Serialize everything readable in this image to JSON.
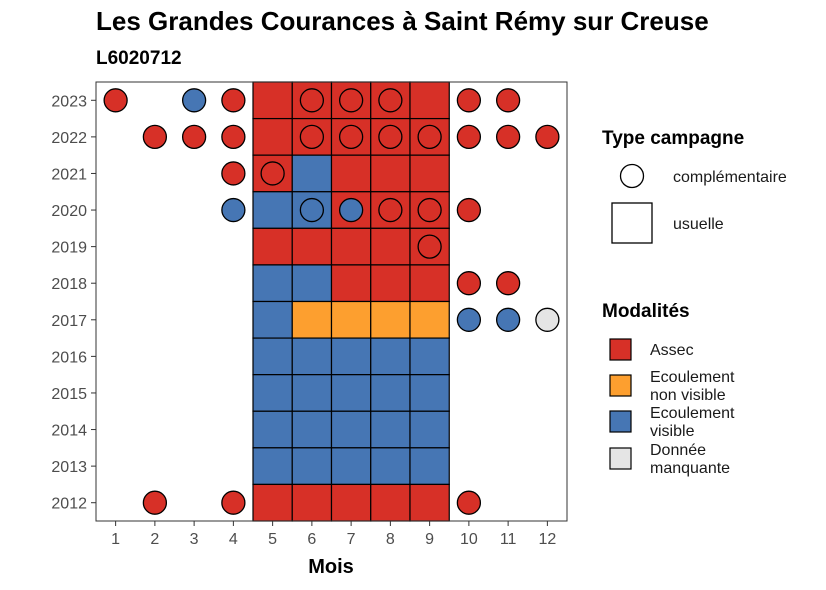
{
  "chart_data": {
    "type": "heatmap",
    "title": "Les Grandes Courances à Saint Rémy sur Creuse",
    "subtitle": "L6020712",
    "xlabel": "Mois",
    "ylabel": "",
    "x_ticks": [
      1,
      2,
      3,
      4,
      5,
      6,
      7,
      8,
      9,
      10,
      11,
      12
    ],
    "y_ticks": [
      2012,
      2013,
      2014,
      2015,
      2016,
      2017,
      2018,
      2019,
      2020,
      2021,
      2022,
      2023
    ],
    "xlim": [
      0.5,
      12.5
    ],
    "ylim": [
      2011.5,
      2023.5
    ],
    "grid": false,
    "legend_placement": "right",
    "modalites": [
      {
        "key": "assec",
        "label_lines": [
          "Assec"
        ],
        "color": "#d73027"
      },
      {
        "key": "ecoulement_non_visible",
        "label_lines": [
          "Ecoulement",
          "non visible"
        ],
        "color": "#fd9f2f"
      },
      {
        "key": "ecoulement_visible",
        "label_lines": [
          "Ecoulement",
          "visible"
        ],
        "color": "#4676b4"
      },
      {
        "key": "donnee_manquante",
        "label_lines": [
          "Donnée",
          "manquante"
        ],
        "color": "#e5e5e5"
      }
    ],
    "legend_type_title": "Type campagne",
    "legend_modalites_title": "Modalités",
    "types": [
      {
        "key": "complementaire",
        "label": "complémentaire",
        "shape": "circle"
      },
      {
        "key": "usuelle",
        "label": "usuelle",
        "shape": "square"
      }
    ],
    "observations": [
      {
        "year": 2023,
        "month": 1,
        "type": "complementaire",
        "modalite": "assec"
      },
      {
        "year": 2023,
        "month": 3,
        "type": "complementaire",
        "modalite": "ecoulement_visible"
      },
      {
        "year": 2023,
        "month": 4,
        "type": "complementaire",
        "modalite": "assec"
      },
      {
        "year": 2023,
        "month": 5,
        "type": "usuelle",
        "modalite": "assec"
      },
      {
        "year": 2023,
        "month": 6,
        "type": "usuelle",
        "modalite": "assec"
      },
      {
        "year": 2023,
        "month": 6,
        "type": "complementaire",
        "modalite": "assec"
      },
      {
        "year": 2023,
        "month": 7,
        "type": "usuelle",
        "modalite": "assec"
      },
      {
        "year": 2023,
        "month": 7,
        "type": "complementaire",
        "modalite": "assec"
      },
      {
        "year": 2023,
        "month": 8,
        "type": "usuelle",
        "modalite": "assec"
      },
      {
        "year": 2023,
        "month": 8,
        "type": "complementaire",
        "modalite": "assec"
      },
      {
        "year": 2023,
        "month": 9,
        "type": "usuelle",
        "modalite": "assec"
      },
      {
        "year": 2023,
        "month": 10,
        "type": "complementaire",
        "modalite": "assec"
      },
      {
        "year": 2023,
        "month": 11,
        "type": "complementaire",
        "modalite": "assec"
      },
      {
        "year": 2022,
        "month": 2,
        "type": "complementaire",
        "modalite": "assec"
      },
      {
        "year": 2022,
        "month": 3,
        "type": "complementaire",
        "modalite": "assec"
      },
      {
        "year": 2022,
        "month": 4,
        "type": "complementaire",
        "modalite": "assec"
      },
      {
        "year": 2022,
        "month": 5,
        "type": "usuelle",
        "modalite": "assec"
      },
      {
        "year": 2022,
        "month": 6,
        "type": "usuelle",
        "modalite": "assec"
      },
      {
        "year": 2022,
        "month": 6,
        "type": "complementaire",
        "modalite": "assec"
      },
      {
        "year": 2022,
        "month": 7,
        "type": "usuelle",
        "modalite": "assec"
      },
      {
        "year": 2022,
        "month": 7,
        "type": "complementaire",
        "modalite": "assec"
      },
      {
        "year": 2022,
        "month": 8,
        "type": "usuelle",
        "modalite": "assec"
      },
      {
        "year": 2022,
        "month": 8,
        "type": "complementaire",
        "modalite": "assec"
      },
      {
        "year": 2022,
        "month": 9,
        "type": "usuelle",
        "modalite": "assec"
      },
      {
        "year": 2022,
        "month": 9,
        "type": "complementaire",
        "modalite": "assec"
      },
      {
        "year": 2022,
        "month": 10,
        "type": "complementaire",
        "modalite": "assec"
      },
      {
        "year": 2022,
        "month": 11,
        "type": "complementaire",
        "modalite": "assec"
      },
      {
        "year": 2022,
        "month": 12,
        "type": "complementaire",
        "modalite": "assec"
      },
      {
        "year": 2021,
        "month": 4,
        "type": "complementaire",
        "modalite": "assec"
      },
      {
        "year": 2021,
        "month": 5,
        "type": "usuelle",
        "modalite": "assec"
      },
      {
        "year": 2021,
        "month": 5,
        "type": "complementaire",
        "modalite": "assec"
      },
      {
        "year": 2021,
        "month": 6,
        "type": "usuelle",
        "modalite": "ecoulement_visible"
      },
      {
        "year": 2021,
        "month": 7,
        "type": "usuelle",
        "modalite": "assec"
      },
      {
        "year": 2021,
        "month": 8,
        "type": "usuelle",
        "modalite": "assec"
      },
      {
        "year": 2021,
        "month": 9,
        "type": "usuelle",
        "modalite": "assec"
      },
      {
        "year": 2020,
        "month": 4,
        "type": "complementaire",
        "modalite": "ecoulement_visible"
      },
      {
        "year": 2020,
        "month": 5,
        "type": "usuelle",
        "modalite": "ecoulement_visible"
      },
      {
        "year": 2020,
        "month": 6,
        "type": "usuelle",
        "modalite": "ecoulement_visible"
      },
      {
        "year": 2020,
        "month": 6,
        "type": "complementaire",
        "modalite": "ecoulement_visible"
      },
      {
        "year": 2020,
        "month": 7,
        "type": "usuelle",
        "modalite": "assec"
      },
      {
        "year": 2020,
        "month": 7,
        "type": "complementaire",
        "modalite": "ecoulement_visible"
      },
      {
        "year": 2020,
        "month": 8,
        "type": "usuelle",
        "modalite": "assec"
      },
      {
        "year": 2020,
        "month": 8,
        "type": "complementaire",
        "modalite": "assec"
      },
      {
        "year": 2020,
        "month": 9,
        "type": "usuelle",
        "modalite": "assec"
      },
      {
        "year": 2020,
        "month": 9,
        "type": "complementaire",
        "modalite": "assec"
      },
      {
        "year": 2020,
        "month": 10,
        "type": "complementaire",
        "modalite": "assec"
      },
      {
        "year": 2019,
        "month": 5,
        "type": "usuelle",
        "modalite": "assec"
      },
      {
        "year": 2019,
        "month": 6,
        "type": "usuelle",
        "modalite": "assec"
      },
      {
        "year": 2019,
        "month": 7,
        "type": "usuelle",
        "modalite": "assec"
      },
      {
        "year": 2019,
        "month": 8,
        "type": "usuelle",
        "modalite": "assec"
      },
      {
        "year": 2019,
        "month": 9,
        "type": "usuelle",
        "modalite": "assec"
      },
      {
        "year": 2019,
        "month": 9,
        "type": "complementaire",
        "modalite": "assec"
      },
      {
        "year": 2018,
        "month": 5,
        "type": "usuelle",
        "modalite": "ecoulement_visible"
      },
      {
        "year": 2018,
        "month": 6,
        "type": "usuelle",
        "modalite": "ecoulement_visible"
      },
      {
        "year": 2018,
        "month": 7,
        "type": "usuelle",
        "modalite": "assec"
      },
      {
        "year": 2018,
        "month": 8,
        "type": "usuelle",
        "modalite": "assec"
      },
      {
        "year": 2018,
        "month": 9,
        "type": "usuelle",
        "modalite": "assec"
      },
      {
        "year": 2018,
        "month": 10,
        "type": "complementaire",
        "modalite": "assec"
      },
      {
        "year": 2018,
        "month": 11,
        "type": "complementaire",
        "modalite": "assec"
      },
      {
        "year": 2017,
        "month": 5,
        "type": "usuelle",
        "modalite": "ecoulement_visible"
      },
      {
        "year": 2017,
        "month": 6,
        "type": "usuelle",
        "modalite": "ecoulement_non_visible"
      },
      {
        "year": 2017,
        "month": 7,
        "type": "usuelle",
        "modalite": "ecoulement_non_visible"
      },
      {
        "year": 2017,
        "month": 8,
        "type": "usuelle",
        "modalite": "ecoulement_non_visible"
      },
      {
        "year": 2017,
        "month": 9,
        "type": "usuelle",
        "modalite": "ecoulement_non_visible"
      },
      {
        "year": 2017,
        "month": 10,
        "type": "complementaire",
        "modalite": "ecoulement_visible"
      },
      {
        "year": 2017,
        "month": 11,
        "type": "complementaire",
        "modalite": "ecoulement_visible"
      },
      {
        "year": 2017,
        "month": 12,
        "type": "complementaire",
        "modalite": "donnee_manquante"
      },
      {
        "year": 2016,
        "month": 5,
        "type": "usuelle",
        "modalite": "ecoulement_visible"
      },
      {
        "year": 2016,
        "month": 6,
        "type": "usuelle",
        "modalite": "ecoulement_visible"
      },
      {
        "year": 2016,
        "month": 7,
        "type": "usuelle",
        "modalite": "ecoulement_visible"
      },
      {
        "year": 2016,
        "month": 8,
        "type": "usuelle",
        "modalite": "ecoulement_visible"
      },
      {
        "year": 2016,
        "month": 9,
        "type": "usuelle",
        "modalite": "ecoulement_visible"
      },
      {
        "year": 2015,
        "month": 5,
        "type": "usuelle",
        "modalite": "ecoulement_visible"
      },
      {
        "year": 2015,
        "month": 6,
        "type": "usuelle",
        "modalite": "ecoulement_visible"
      },
      {
        "year": 2015,
        "month": 7,
        "type": "usuelle",
        "modalite": "ecoulement_visible"
      },
      {
        "year": 2015,
        "month": 8,
        "type": "usuelle",
        "modalite": "ecoulement_visible"
      },
      {
        "year": 2015,
        "month": 9,
        "type": "usuelle",
        "modalite": "ecoulement_visible"
      },
      {
        "year": 2014,
        "month": 5,
        "type": "usuelle",
        "modalite": "ecoulement_visible"
      },
      {
        "year": 2014,
        "month": 6,
        "type": "usuelle",
        "modalite": "ecoulement_visible"
      },
      {
        "year": 2014,
        "month": 7,
        "type": "usuelle",
        "modalite": "ecoulement_visible"
      },
      {
        "year": 2014,
        "month": 8,
        "type": "usuelle",
        "modalite": "ecoulement_visible"
      },
      {
        "year": 2014,
        "month": 9,
        "type": "usuelle",
        "modalite": "ecoulement_visible"
      },
      {
        "year": 2013,
        "month": 5,
        "type": "usuelle",
        "modalite": "ecoulement_visible"
      },
      {
        "year": 2013,
        "month": 6,
        "type": "usuelle",
        "modalite": "ecoulement_visible"
      },
      {
        "year": 2013,
        "month": 7,
        "type": "usuelle",
        "modalite": "ecoulement_visible"
      },
      {
        "year": 2013,
        "month": 8,
        "type": "usuelle",
        "modalite": "ecoulement_visible"
      },
      {
        "year": 2013,
        "month": 9,
        "type": "usuelle",
        "modalite": "ecoulement_visible"
      },
      {
        "year": 2012,
        "month": 2,
        "type": "complementaire",
        "modalite": "assec"
      },
      {
        "year": 2012,
        "month": 4,
        "type": "complementaire",
        "modalite": "assec"
      },
      {
        "year": 2012,
        "month": 5,
        "type": "usuelle",
        "modalite": "assec"
      },
      {
        "year": 2012,
        "month": 6,
        "type": "usuelle",
        "modalite": "assec"
      },
      {
        "year": 2012,
        "month": 7,
        "type": "usuelle",
        "modalite": "assec"
      },
      {
        "year": 2012,
        "month": 8,
        "type": "usuelle",
        "modalite": "assec"
      },
      {
        "year": 2012,
        "month": 9,
        "type": "usuelle",
        "modalite": "assec"
      },
      {
        "year": 2012,
        "month": 10,
        "type": "complementaire",
        "modalite": "assec"
      }
    ]
  }
}
